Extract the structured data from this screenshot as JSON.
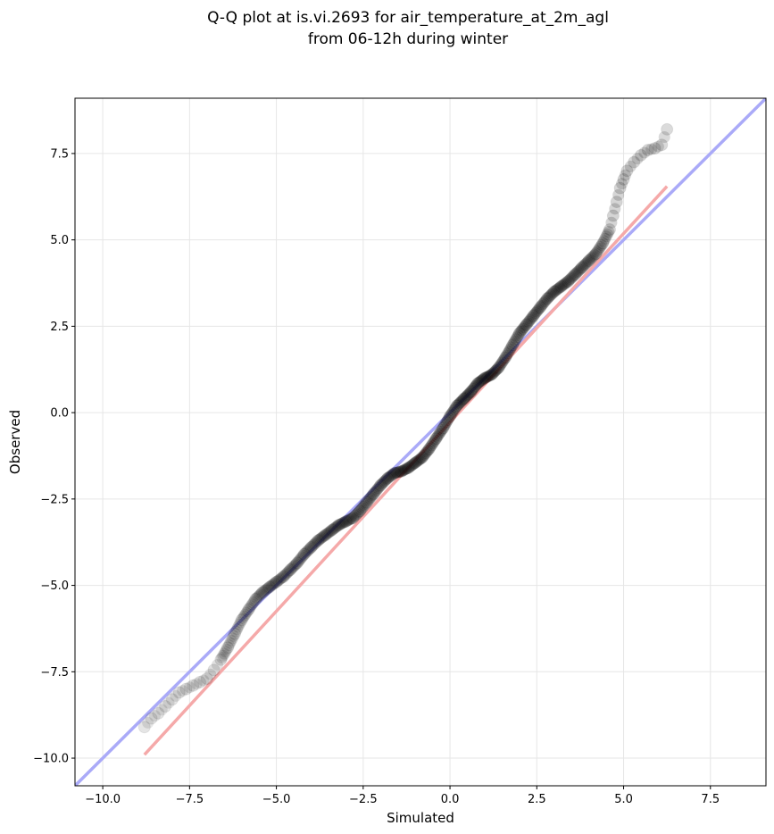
{
  "chart_data": {
    "type": "scatter",
    "title": [
      "Q-Q plot at is.vi.2693 for air_temperature_at_2m_agl",
      "from 06-12h during winter"
    ],
    "xlabel": "Simulated",
    "ylabel": "Observed",
    "xlim": [
      -10.8,
      9.1
    ],
    "ylim": [
      -10.8,
      9.1
    ],
    "xticks": [
      -10.0,
      -7.5,
      -5.0,
      -2.5,
      0.0,
      2.5,
      5.0,
      7.5
    ],
    "yticks": [
      -10.0,
      -7.5,
      -5.0,
      -2.5,
      0.0,
      2.5,
      5.0,
      7.5
    ],
    "xtick_labels": [
      "−10.0",
      "−7.5",
      "−5.0",
      "−2.5",
      "0.0",
      "2.5",
      "5.0",
      "7.5"
    ],
    "ytick_labels": [
      "−10.0",
      "−7.5",
      "−5.0",
      "−2.5",
      "0.0",
      "2.5",
      "5.0",
      "7.5"
    ],
    "grid": true,
    "colors": {
      "points": "#000000",
      "identity_line": "#aaaaf8",
      "fit_line": "#f5a9a9"
    },
    "identity_line": {
      "x": [
        -10.8,
        9.1
      ],
      "y": [
        -10.8,
        9.1
      ]
    },
    "fit_line": {
      "x": [
        -8.8,
        6.25
      ],
      "y": [
        -9.9,
        6.55
      ]
    },
    "quantiles": {
      "x": [
        -8.8,
        -8.6,
        -8.4,
        -8.2,
        -8.0,
        -7.8,
        -7.6,
        -7.4,
        -7.2,
        -7.0,
        -6.8,
        -6.6,
        -6.4,
        -6.2,
        -6.0,
        -5.8,
        -5.6,
        -5.4,
        -5.2,
        -5.0,
        -4.8,
        -4.6,
        -4.4,
        -4.2,
        -4.0,
        -3.8,
        -3.6,
        -3.4,
        -3.2,
        -3.0,
        -2.8,
        -2.6,
        -2.4,
        -2.2,
        -2.0,
        -1.8,
        -1.6,
        -1.4,
        -1.2,
        -1.0,
        -0.8,
        -0.6,
        -0.4,
        -0.2,
        0.0,
        0.2,
        0.4,
        0.6,
        0.8,
        1.0,
        1.2,
        1.4,
        1.6,
        1.8,
        2.0,
        2.2,
        2.4,
        2.6,
        2.8,
        3.0,
        3.2,
        3.4,
        3.6,
        3.8,
        4.0,
        4.2,
        4.4,
        4.6,
        4.7,
        4.8,
        4.9,
        5.0,
        5.1,
        5.3,
        5.5,
        5.7,
        5.9,
        6.1,
        6.25
      ],
      "y": [
        -9.1,
        -8.85,
        -8.7,
        -8.5,
        -8.3,
        -8.1,
        -8.0,
        -7.9,
        -7.8,
        -7.7,
        -7.45,
        -7.15,
        -6.8,
        -6.4,
        -6.0,
        -5.7,
        -5.4,
        -5.2,
        -5.05,
        -4.9,
        -4.75,
        -4.55,
        -4.35,
        -4.1,
        -3.9,
        -3.7,
        -3.55,
        -3.4,
        -3.25,
        -3.15,
        -3.05,
        -2.85,
        -2.6,
        -2.35,
        -2.1,
        -1.9,
        -1.75,
        -1.7,
        -1.6,
        -1.45,
        -1.3,
        -1.05,
        -0.75,
        -0.45,
        -0.1,
        0.2,
        0.4,
        0.6,
        0.85,
        1.0,
        1.1,
        1.3,
        1.6,
        1.95,
        2.3,
        2.55,
        2.8,
        3.05,
        3.3,
        3.5,
        3.65,
        3.8,
        4.0,
        4.2,
        4.4,
        4.6,
        4.9,
        5.3,
        5.7,
        6.1,
        6.5,
        6.75,
        7.0,
        7.25,
        7.45,
        7.6,
        7.65,
        7.75,
        8.2
      ]
    }
  }
}
